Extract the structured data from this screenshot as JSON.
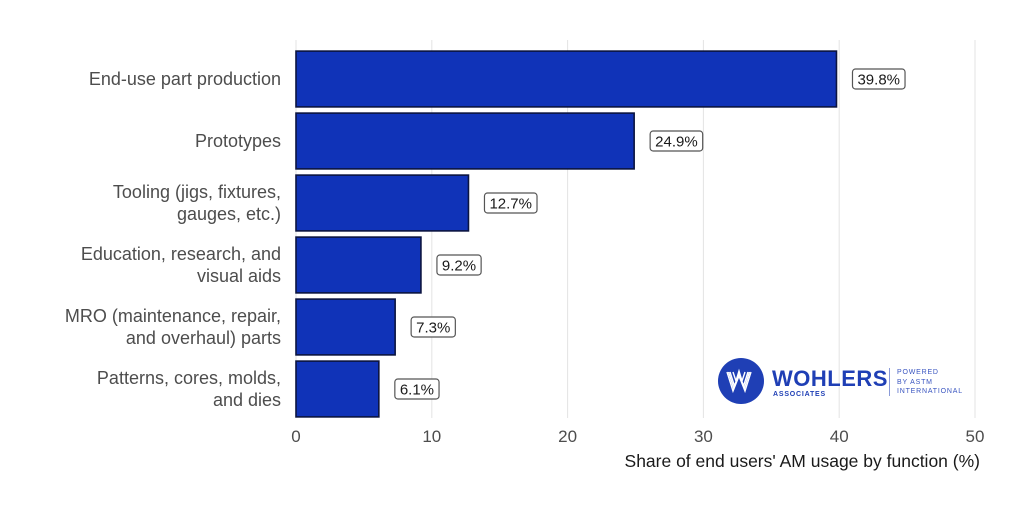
{
  "chart_data": {
    "type": "bar",
    "orientation": "horizontal",
    "title": "",
    "xlabel": "Share of end users' AM usage by function (%)",
    "ylabel": "",
    "xlim": [
      0,
      50
    ],
    "x_ticks": [
      0,
      10,
      20,
      30,
      40,
      50
    ],
    "x_tick_labels": [
      "0",
      "10",
      "20",
      "30",
      "40",
      "50"
    ],
    "grid": "vertical major gridlines",
    "legend": "none",
    "categories": [
      [
        "End-use part production"
      ],
      [
        "Prototypes"
      ],
      [
        "Tooling (jigs, fixtures,",
        "gauges, etc.)"
      ],
      [
        "Education, research, and",
        "visual aids"
      ],
      [
        "MRO (maintenance, repair,",
        "and overhaul) parts"
      ],
      [
        "Patterns, cores, molds,",
        "and dies"
      ]
    ],
    "category_names": [
      "End-use part production",
      "Prototypes",
      "Tooling (jigs, fixtures, gauges, etc.)",
      "Education, research, and visual aids",
      "MRO (maintenance, repair, and overhaul) parts",
      "Patterns, cores, molds, and dies"
    ],
    "values": [
      39.8,
      24.9,
      12.7,
      9.2,
      7.3,
      6.1
    ],
    "data_labels": [
      "39.8%",
      "24.9%",
      "12.7%",
      "9.2%",
      "7.3%",
      "6.1%"
    ],
    "colors": {
      "bar_fill": "#1033b8",
      "bar_outline": "#0b1440",
      "grid": "#e3e3e3",
      "label_box_border": "#555555"
    }
  },
  "logo": {
    "name": "WOHLERS",
    "subtitle": "ASSOCIATES",
    "powered_lines": [
      "POWERED",
      "BY ASTM",
      "INTERNATIONAL"
    ],
    "color": "#1f3fb5"
  }
}
